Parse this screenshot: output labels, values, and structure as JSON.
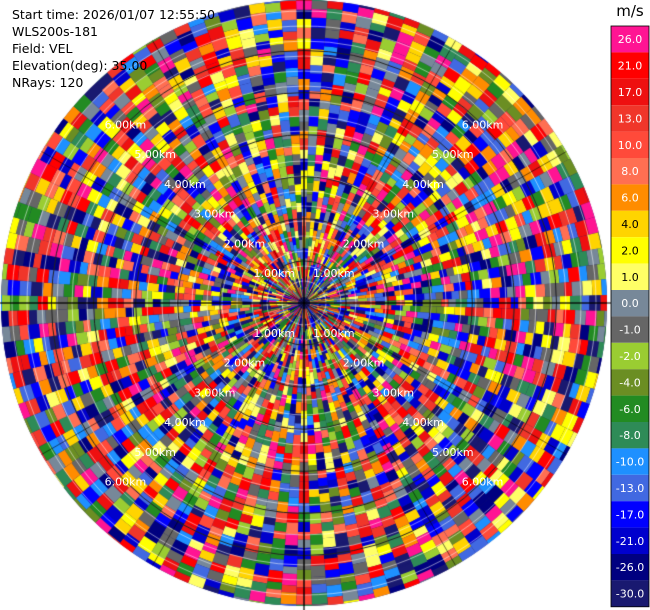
{
  "header": {
    "start_time": "Start time: 2026/01/07 12:55:50",
    "instrument": "WLS200s-181",
    "field": "Field: VEL",
    "elevation": "Elevation(deg): 35.00",
    "nrays": "NRays: 120"
  },
  "chart_data": {
    "type": "heatmap",
    "projection": "polar-ppi",
    "nrays": 120,
    "range_rings_km": [
      1.0,
      2.0,
      3.0,
      4.0,
      5.0,
      6.0
    ],
    "ring_labels": [
      "1.00km",
      "2.00km",
      "3.00km",
      "4.00km",
      "5.00km",
      "6.00km"
    ],
    "max_range_km": 7.2,
    "colorbar": {
      "unit": "m/s",
      "levels": [
        {
          "label": "26.0",
          "color": "#ff1493"
        },
        {
          "label": "21.0",
          "color": "#ff0000"
        },
        {
          "label": "17.0",
          "color": "#ee1010"
        },
        {
          "label": "13.0",
          "color": "#f0362a"
        },
        {
          "label": "10.0",
          "color": "#ff4a3a"
        },
        {
          "label": "8.0",
          "color": "#ff6f52"
        },
        {
          "label": "6.0",
          "color": "#ff8c00"
        },
        {
          "label": "4.0",
          "color": "#ffd400"
        },
        {
          "label": "2.0",
          "color": "#ffff00"
        },
        {
          "label": "1.0",
          "color": "#ffff66"
        },
        {
          "label": "0.0",
          "color": "#778899"
        },
        {
          "label": "-1.0",
          "color": "#666666"
        },
        {
          "label": "-2.0",
          "color": "#9acd32"
        },
        {
          "label": "-4.0",
          "color": "#6b8e23"
        },
        {
          "label": "-6.0",
          "color": "#228b22"
        },
        {
          "label": "-8.0",
          "color": "#2e8b57"
        },
        {
          "label": "-10.0",
          "color": "#1e90ff"
        },
        {
          "label": "-13.0",
          "color": "#4169e1"
        },
        {
          "label": "-17.0",
          "color": "#0000ff"
        },
        {
          "label": "-21.0",
          "color": "#0000cd"
        },
        {
          "label": "-26.0",
          "color": "#000080"
        },
        {
          "label": "-30.0",
          "color": "#191970"
        }
      ]
    }
  }
}
